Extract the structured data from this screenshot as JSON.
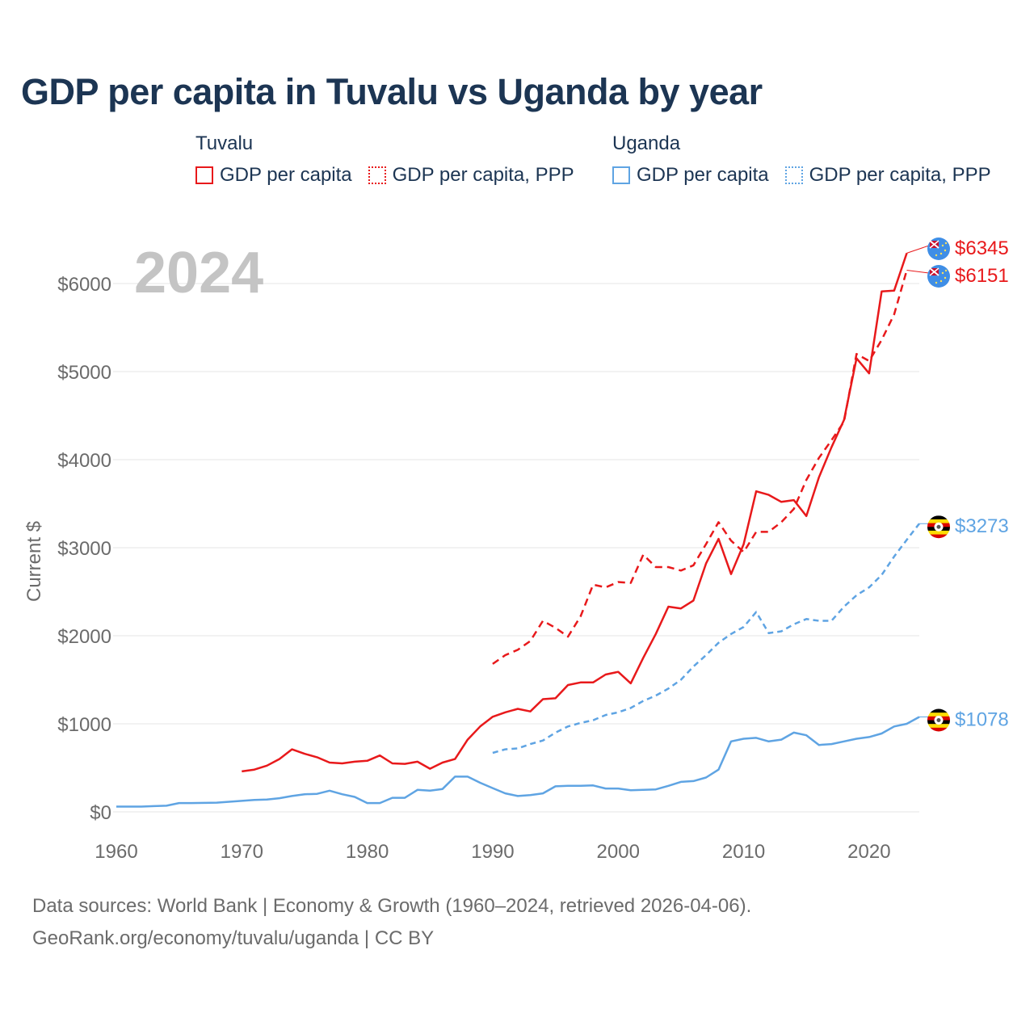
{
  "title": "GDP per capita in Tuvalu vs Uganda by year",
  "legend": {
    "tuvalu": {
      "country": "Tuvalu",
      "nominal": "GDP per capita",
      "ppp": "GDP per capita, PPP",
      "color": "#e8191b"
    },
    "uganda": {
      "country": "Uganda",
      "nominal": "GDP per capita",
      "ppp": "GDP per capita, PPP",
      "color": "#5fa4e3"
    }
  },
  "footer": {
    "line1": "Data sources: World Bank | Economy & Growth (1960–2024, retrieved 2026-04-06).",
    "line2": "GeoRank.org/economy/tuvalu/uganda | CC BY"
  },
  "chart_data": {
    "type": "line",
    "year_label": "2024",
    "ylabel": "Current $",
    "xlim": [
      1960,
      2024
    ],
    "ylim": [
      0,
      6600
    ],
    "x_ticks": [
      1960,
      1970,
      1980,
      1990,
      2000,
      2010,
      2020
    ],
    "x_tick_labels": [
      "1960",
      "1970",
      "1980",
      "1990",
      "2000",
      "2010",
      "2020"
    ],
    "y_ticks": [
      0,
      1000,
      2000,
      3000,
      4000,
      5000,
      6000
    ],
    "y_tick_labels": [
      "$0",
      "$1000",
      "$2000",
      "$3000",
      "$4000",
      "$5000",
      "$6000"
    ],
    "grid": true,
    "series": [
      {
        "name": "Tuvalu GDP per capita",
        "country": "tuvalu",
        "color": "#e8191b",
        "dash": "solid",
        "end_label": "$6345",
        "flag": "tuvalu",
        "start_year": 1970,
        "values": [
          460,
          480,
          525,
          600,
          710,
          660,
          620,
          560,
          550,
          570,
          580,
          640,
          550,
          545,
          570,
          490,
          560,
          600,
          820,
          970,
          1080,
          1130,
          1170,
          1140,
          1280,
          1290,
          1440,
          1470,
          1470,
          1560,
          1590,
          1460,
          1750,
          2020,
          2330,
          2310,
          2400,
          2820,
          3100,
          2700,
          3040,
          3640,
          3600,
          3520,
          3540,
          3360,
          3800,
          4140,
          4450,
          5150,
          4980,
          5910,
          5920,
          6345
        ]
      },
      {
        "name": "Tuvalu GDP per capita, PPP",
        "country": "tuvalu",
        "color": "#e8191b",
        "dash": "dashed",
        "end_label": "$6151",
        "flag": "tuvalu",
        "start_year": 1990,
        "values": [
          1680,
          1780,
          1840,
          1940,
          2170,
          2090,
          1990,
          2220,
          2580,
          2550,
          2610,
          2600,
          2920,
          2780,
          2780,
          2740,
          2800,
          3040,
          3290,
          3080,
          2950,
          3180,
          3180,
          3290,
          3440,
          3770,
          4020,
          4220,
          4430,
          5200,
          5120,
          5360,
          5650,
          6151
        ]
      },
      {
        "name": "Uganda GDP per capita",
        "country": "uganda",
        "color": "#5fa4e3",
        "dash": "solid",
        "end_label": "$1078",
        "flag": "uganda",
        "start_year": 1960,
        "values": [
          60,
          60,
          60,
          65,
          70,
          100,
          100,
          102,
          105,
          115,
          125,
          135,
          140,
          155,
          180,
          200,
          205,
          240,
          200,
          170,
          100,
          100,
          160,
          160,
          250,
          240,
          260,
          400,
          400,
          330,
          270,
          210,
          180,
          190,
          210,
          290,
          295,
          295,
          300,
          265,
          265,
          245,
          250,
          255,
          295,
          340,
          350,
          390,
          480,
          800,
          830,
          840,
          800,
          820,
          900,
          870,
          760,
          770,
          800,
          830,
          850,
          890,
          970,
          1000,
          1078
        ]
      },
      {
        "name": "Uganda GDP per capita, PPP",
        "country": "uganda",
        "color": "#5fa4e3",
        "dash": "dotted",
        "end_label": "$3273",
        "flag": "uganda",
        "start_year": 1990,
        "values": [
          670,
          710,
          720,
          770,
          810,
          900,
          970,
          1010,
          1040,
          1100,
          1130,
          1180,
          1260,
          1320,
          1400,
          1500,
          1650,
          1780,
          1920,
          2020,
          2100,
          2270,
          2030,
          2050,
          2130,
          2190,
          2170,
          2170,
          2330,
          2460,
          2550,
          2690,
          2900,
          3090,
          3273
        ]
      }
    ]
  }
}
